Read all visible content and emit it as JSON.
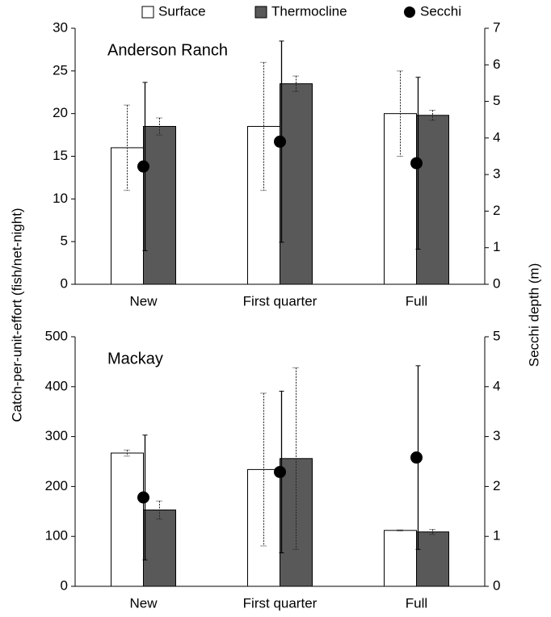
{
  "chart_data": [
    {
      "type": "bar",
      "title": "Anderson Ranch",
      "ylabel": "Catch-per-unit-effort (fish/net-night)",
      "y2label": "Secchi depth (m)",
      "categories": [
        "New",
        "First quarter",
        "Full"
      ],
      "ylim": [
        0,
        30
      ],
      "yticks": [
        0,
        5,
        10,
        15,
        20,
        25,
        30
      ],
      "y2lim": [
        0,
        7
      ],
      "y2ticks": [
        0,
        1,
        2,
        3,
        4,
        5,
        6,
        7
      ],
      "series": [
        {
          "name": "Surface",
          "color": "#ffffff",
          "values": [
            16,
            18.5,
            20
          ],
          "errors": [
            5,
            7.5,
            5
          ]
        },
        {
          "name": "Thermocline",
          "color": "#595959",
          "values": [
            18.5,
            23.5,
            19.8
          ],
          "errors": [
            1,
            0.9,
            0.6
          ]
        },
        {
          "name": "Secchi",
          "color": "#000000",
          "axis": "y2",
          "values": [
            3.22,
            3.9,
            3.31
          ],
          "errors": [
            2.3,
            2.75,
            2.35
          ]
        }
      ]
    },
    {
      "type": "bar",
      "title": "Mackay",
      "categories": [
        "New",
        "First quarter",
        "Full"
      ],
      "ylim": [
        0,
        500
      ],
      "yticks": [
        0,
        100,
        200,
        300,
        400,
        500
      ],
      "y2lim": [
        0,
        5
      ],
      "y2ticks": [
        0,
        1,
        2,
        3,
        4,
        5
      ],
      "series": [
        {
          "color": "#ffffff",
          "values": [
            267,
            234,
            112
          ],
          "errors": [
            6,
            153,
            1
          ]
        },
        {
          "color": "#595959",
          "values": [
            153,
            256,
            109
          ],
          "errors": [
            18,
            182,
            5
          ]
        },
        {
          "color": "#000000",
          "axis": "y2",
          "values": [
            1.78,
            2.29,
            2.58
          ],
          "errors": [
            1.25,
            1.62,
            1.84
          ]
        }
      ]
    }
  ]
}
